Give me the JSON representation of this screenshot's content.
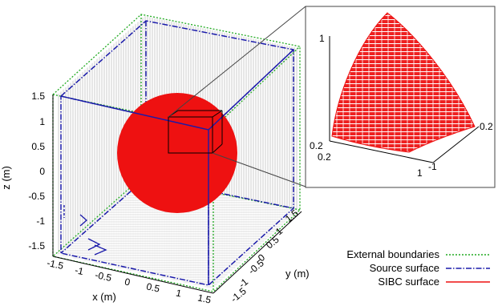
{
  "main_plot": {
    "z_axis": {
      "label": "z (m)",
      "ticks": [
        "1.5",
        "1",
        "0.5",
        "0",
        "-0.5",
        "-1",
        "-1.5"
      ]
    },
    "x_axis": {
      "label": "x (m)",
      "ticks": [
        "-1.5",
        "-1",
        "-0.5",
        "0",
        "0.5",
        "1",
        "1.5"
      ]
    },
    "y_axis": {
      "label": "y (m)",
      "ticks": [
        "-1.5",
        "-1",
        "-0.5",
        "0",
        "0.5",
        "1",
        "1.5"
      ]
    }
  },
  "inset": {
    "ticks": {
      "z_top": "1",
      "left_a": "0.2",
      "left_b": "0.2",
      "right": "0.2",
      "bottom_1": "1",
      "bottom_2": "-1"
    }
  },
  "legend": {
    "items": [
      {
        "label": "External boundaries",
        "color": "#22aa22",
        "style": "dotted"
      },
      {
        "label": "Source surface",
        "color": "#1a1aaa",
        "style": "dash-dot"
      },
      {
        "label": "SIBC surface",
        "color": "#ee1111",
        "style": "solid"
      }
    ]
  },
  "colors": {
    "sphere": "#ee1111",
    "mesh": "#999999",
    "frame": "#555555"
  }
}
